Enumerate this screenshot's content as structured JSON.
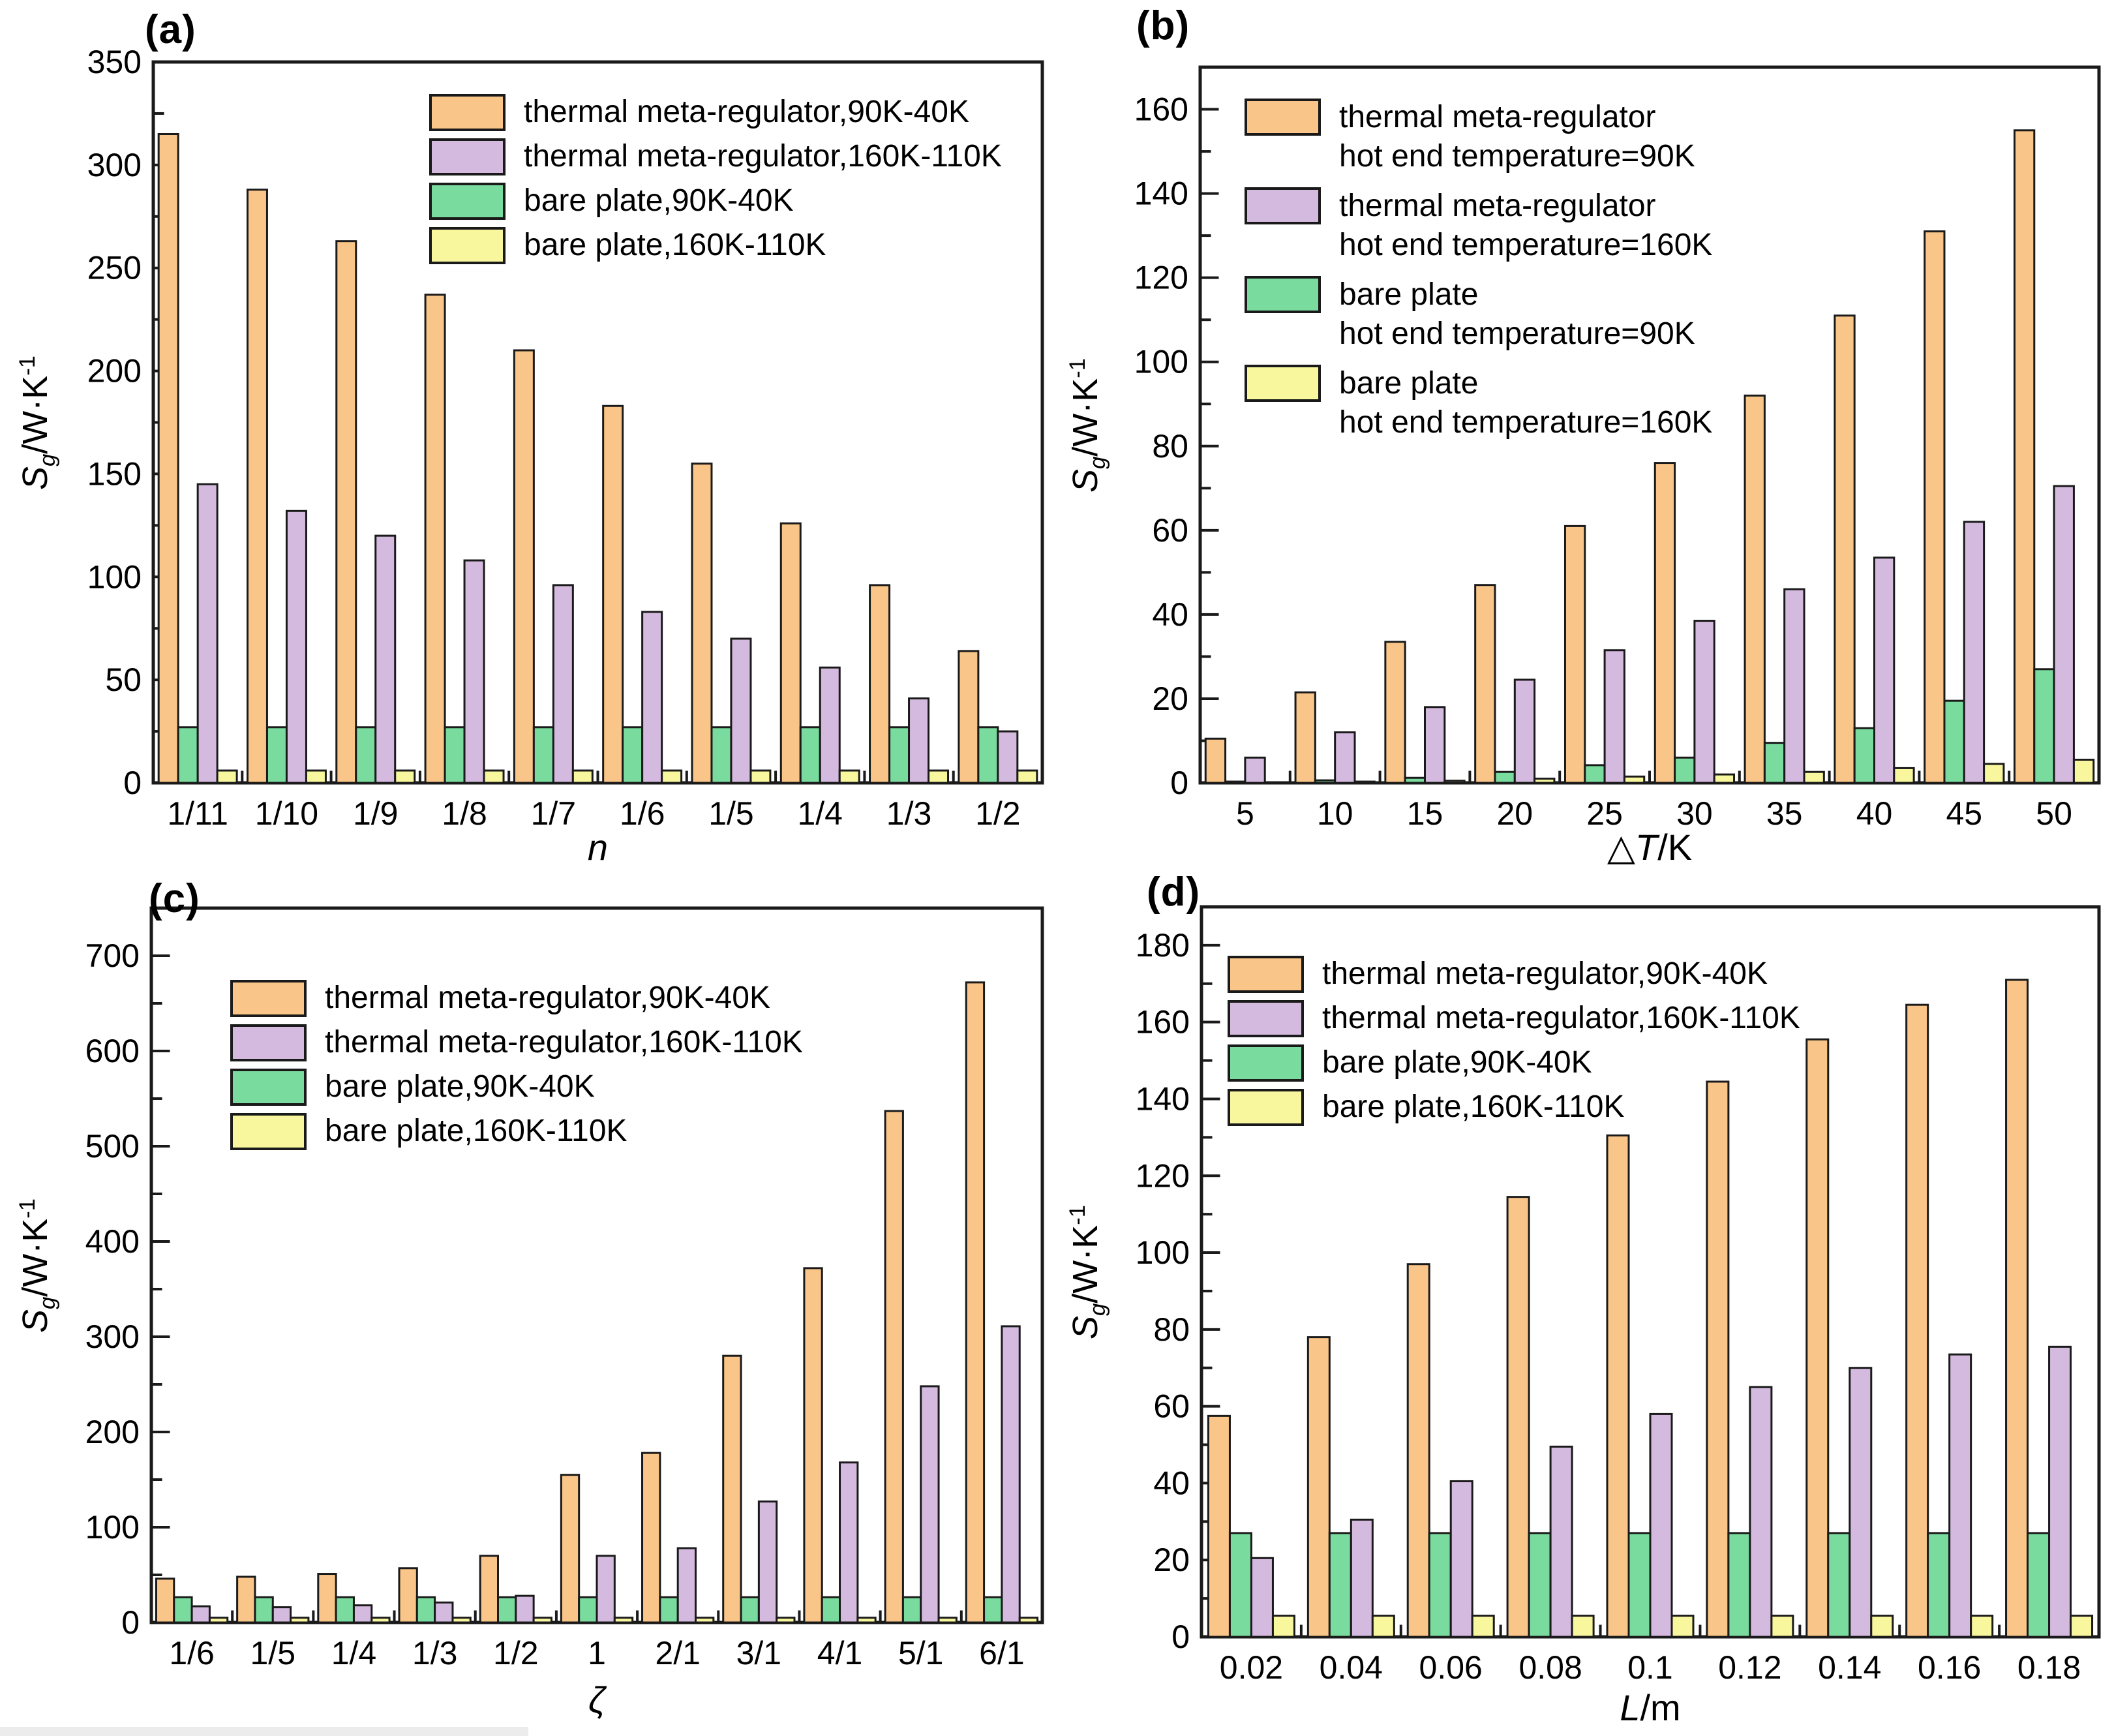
{
  "figure": {
    "background": "#ffffff",
    "edge_color": "#1a1a1a",
    "series_colors": {
      "thermal_meta_regulator_90K": "#FAC588",
      "thermal_meta_regulator_160K": "#D5BAE0",
      "bare_plate_90K": "#79DC9E",
      "bare_plate_160K": "#F8F79E"
    }
  },
  "chart_data": [
    {
      "id": "a",
      "type": "bar",
      "panel_label": "(a)",
      "xlabel": {
        "prefix": "",
        "variable": "n",
        "rest": ""
      },
      "ylabel": {
        "base": "S",
        "sub": "g",
        "rest": "/W·K",
        "sup": "-1"
      },
      "yaxis": {
        "min": 0,
        "frame_max": 350,
        "tick_max": 350,
        "major": 50,
        "minor": 25
      },
      "categories": [
        "1/11",
        "1/10",
        "1/9",
        "1/8",
        "1/7",
        "1/6",
        "1/5",
        "1/4",
        "1/3",
        "1/2"
      ],
      "series": [
        {
          "name": "thermal meta-regulator,90K-40K",
          "color": "#FAC588",
          "values": [
            315,
            288,
            263,
            237,
            210,
            183,
            155,
            126,
            96,
            64
          ]
        },
        {
          "name": "thermal meta-regulator,160K-110K",
          "color": "#D5BAE0",
          "values": [
            145,
            132,
            120,
            108,
            96,
            83,
            70,
            56,
            41,
            25
          ]
        },
        {
          "name": "bare plate,90K-40K",
          "color": "#79DC9E",
          "values": [
            27,
            27,
            27,
            27,
            27,
            27,
            27,
            27,
            27,
            27
          ]
        },
        {
          "name": "bare plate,160K-110K",
          "color": "#F8F79E",
          "values": [
            6,
            6,
            6,
            6,
            6,
            6,
            6,
            6,
            6,
            6
          ]
        }
      ],
      "draw_order": [
        0,
        2,
        1,
        3
      ],
      "legend": {
        "entries": [
          {
            "series": 0,
            "lines": [
              "thermal meta-regulator,90K-40K"
            ]
          },
          {
            "series": 1,
            "lines": [
              "thermal meta-regulator,160K-110K"
            ]
          },
          {
            "series": 2,
            "lines": [
              "bare plate,90K-40K"
            ]
          },
          {
            "series": 3,
            "lines": [
              "bare plate,160K-110K"
            ]
          }
        ]
      }
    },
    {
      "id": "b",
      "type": "bar",
      "panel_label": "(b)",
      "xlabel": {
        "prefix": "△",
        "variable": "T",
        "rest": "/K"
      },
      "ylabel": {
        "base": "S",
        "sub": "g",
        "rest": "/W·K",
        "sup": "-1"
      },
      "yaxis": {
        "min": 0,
        "frame_max": 170,
        "tick_max": 160,
        "major": 20,
        "minor": 10
      },
      "categories": [
        "5",
        "10",
        "15",
        "20",
        "25",
        "30",
        "35",
        "40",
        "45",
        "50"
      ],
      "series": [
        {
          "name": "thermal meta-regulator hot end temperature=90K",
          "color": "#FAC588",
          "values": [
            10.5,
            21.5,
            33.5,
            47,
            61,
            76,
            92,
            111,
            131,
            155
          ]
        },
        {
          "name": "thermal meta-regulator hot end temperature=160K",
          "color": "#D5BAE0",
          "values": [
            6,
            12,
            18,
            24.5,
            31.5,
            38.5,
            46,
            53.5,
            62,
            70.5
          ]
        },
        {
          "name": "bare plate hot end temperature=90K",
          "color": "#79DC9E",
          "values": [
            0.3,
            0.6,
            1.2,
            2.6,
            4.2,
            6,
            9.5,
            13,
            19.5,
            27
          ]
        },
        {
          "name": "bare plate hot end temperature=160K",
          "color": "#F8F79E",
          "values": [
            0.1,
            0.3,
            0.5,
            1,
            1.5,
            2,
            2.6,
            3.5,
            4.5,
            5.5
          ]
        }
      ],
      "draw_order": [
        0,
        2,
        1,
        3
      ],
      "legend": {
        "entries": [
          {
            "series": 0,
            "lines": [
              "thermal meta-regulator",
              "hot end temperature=90K"
            ]
          },
          {
            "series": 1,
            "lines": [
              "thermal meta-regulator",
              "hot end temperature=160K"
            ]
          },
          {
            "series": 2,
            "lines": [
              "bare plate",
              "hot end temperature=90K"
            ]
          },
          {
            "series": 3,
            "lines": [
              "bare plate",
              "hot end temperature=160K"
            ]
          }
        ]
      }
    },
    {
      "id": "c",
      "type": "bar",
      "panel_label": "(c)",
      "xlabel": {
        "prefix": "",
        "variable": "ζ",
        "rest": ""
      },
      "ylabel": {
        "base": "S",
        "sub": "g",
        "rest": "/W·K",
        "sup": "-1"
      },
      "yaxis": {
        "min": 0,
        "frame_max": 750,
        "tick_max": 700,
        "major": 100,
        "minor": 50
      },
      "categories": [
        "1/6",
        "1/5",
        "1/4",
        "1/3",
        "1/2",
        "1",
        "2/1",
        "3/1",
        "4/1",
        "5/1",
        "6/1"
      ],
      "series": [
        {
          "name": "thermal meta-regulator,90K-40K",
          "color": "#FAC588",
          "values": [
            46,
            48,
            51,
            57,
            70,
            155,
            178,
            280,
            372,
            537,
            672
          ]
        },
        {
          "name": "thermal meta-regulator,160K-110K",
          "color": "#D5BAE0",
          "values": [
            17,
            16,
            18,
            21,
            28,
            70,
            78,
            127,
            168,
            248,
            311
          ]
        },
        {
          "name": "bare plate,90K-40K",
          "color": "#79DC9E",
          "values": [
            26.5,
            26.5,
            26.5,
            26.5,
            26.5,
            26.5,
            26.5,
            26.5,
            26.5,
            26.5,
            26.5
          ]
        },
        {
          "name": "bare plate,160K-110K",
          "color": "#F8F79E",
          "values": [
            5,
            5,
            5,
            5,
            5,
            5,
            5,
            5,
            5,
            5,
            5
          ]
        }
      ],
      "draw_order": [
        0,
        2,
        1,
        3
      ],
      "legend": {
        "entries": [
          {
            "series": 0,
            "lines": [
              "thermal meta-regulator,90K-40K"
            ]
          },
          {
            "series": 1,
            "lines": [
              "thermal meta-regulator,160K-110K"
            ]
          },
          {
            "series": 2,
            "lines": [
              "bare plate,90K-40K"
            ]
          },
          {
            "series": 3,
            "lines": [
              "bare plate,160K-110K"
            ]
          }
        ]
      }
    },
    {
      "id": "d",
      "type": "bar",
      "panel_label": "(d)",
      "xlabel": {
        "prefix": "",
        "variable": "L",
        "rest": "/m"
      },
      "ylabel": {
        "base": "S",
        "sub": "g",
        "rest": "/W·K",
        "sup": "-1"
      },
      "yaxis": {
        "min": 0,
        "frame_max": 190,
        "tick_max": 180,
        "major": 20,
        "minor": 10
      },
      "categories": [
        "0.02",
        "0.04",
        "0.06",
        "0.08",
        "0.1",
        "0.12",
        "0.14",
        "0.16",
        "0.18"
      ],
      "series": [
        {
          "name": "thermal meta-regulator,90K-40K",
          "color": "#FAC588",
          "values": [
            57.5,
            78,
            97,
            114.5,
            130.5,
            144.5,
            155.5,
            164.5,
            171
          ]
        },
        {
          "name": "thermal meta-regulator,160K-110K",
          "color": "#D5BAE0",
          "values": [
            20.5,
            30.5,
            40.5,
            49.5,
            58,
            65,
            70,
            73.5,
            75.5
          ]
        },
        {
          "name": "bare plate,90K-40K",
          "color": "#79DC9E",
          "values": [
            27,
            27,
            27,
            27,
            27,
            27,
            27,
            27,
            27
          ]
        },
        {
          "name": "bare plate,160K-110K",
          "color": "#F8F79E",
          "values": [
            5.5,
            5.5,
            5.5,
            5.5,
            5.5,
            5.5,
            5.5,
            5.5,
            5.5
          ]
        }
      ],
      "draw_order": [
        0,
        2,
        1,
        3
      ],
      "legend": {
        "entries": [
          {
            "series": 0,
            "lines": [
              "thermal meta-regulator,90K-40K"
            ]
          },
          {
            "series": 1,
            "lines": [
              "thermal meta-regulator,160K-110K"
            ]
          },
          {
            "series": 2,
            "lines": [
              "bare plate,90K-40K"
            ]
          },
          {
            "series": 3,
            "lines": [
              "bare plate,160K-110K"
            ]
          }
        ]
      }
    }
  ]
}
